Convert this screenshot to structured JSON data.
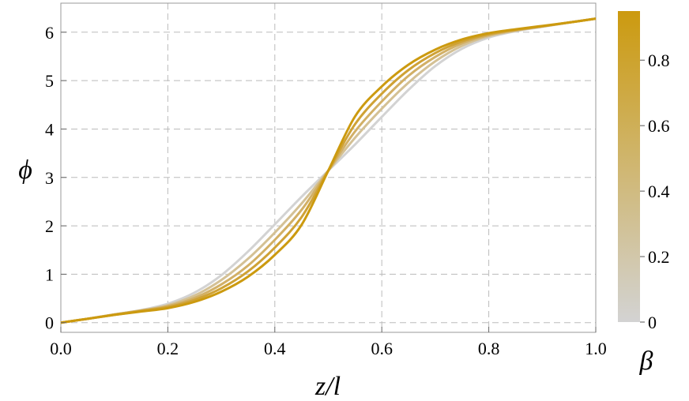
{
  "chart_data": {
    "type": "line",
    "title": "",
    "xlabel": "z/l",
    "ylabel": "ϕ",
    "xlim": [
      0,
      1
    ],
    "ylim": [
      -0.2,
      6.6
    ],
    "xticks": [
      0.0,
      0.2,
      0.4,
      0.6,
      0.8,
      1.0
    ],
    "xtick_labels": [
      "0.0",
      "0.2",
      "0.4",
      "0.6",
      "0.8",
      "1.0"
    ],
    "yticks": [
      0,
      1,
      2,
      3,
      4,
      5,
      6
    ],
    "ytick_labels": [
      "0",
      "1",
      "2",
      "3",
      "4",
      "5",
      "6"
    ],
    "grid": true,
    "x": [
      0,
      0.05,
      0.1,
      0.15,
      0.2,
      0.25,
      0.3,
      0.35,
      0.4,
      0.45,
      0.5,
      0.55,
      0.6,
      0.65,
      0.7,
      0.75,
      0.8,
      0.85,
      0.9,
      0.95,
      1.0
    ],
    "series": [
      {
        "beta": 0.0,
        "color": "#d3d3d3",
        "values": [
          0.0,
          0.08,
          0.17,
          0.26,
          0.39,
          0.62,
          0.98,
          1.47,
          2.03,
          2.6,
          3.14,
          3.68,
          4.25,
          4.81,
          5.3,
          5.66,
          5.89,
          6.02,
          6.11,
          6.2,
          6.28
        ]
      },
      {
        "beta": 0.25,
        "color": "#d4c195",
        "values": [
          0.0,
          0.08,
          0.17,
          0.25,
          0.36,
          0.56,
          0.88,
          1.32,
          1.86,
          2.46,
          3.14,
          3.82,
          4.42,
          4.96,
          5.4,
          5.72,
          5.92,
          6.03,
          6.12,
          6.2,
          6.28
        ]
      },
      {
        "beta": 0.5,
        "color": "#d2b066",
        "values": [
          0.0,
          0.08,
          0.17,
          0.25,
          0.34,
          0.51,
          0.79,
          1.18,
          1.71,
          2.33,
          3.14,
          3.95,
          4.57,
          5.1,
          5.49,
          5.77,
          5.94,
          6.04,
          6.12,
          6.2,
          6.28
        ]
      },
      {
        "beta": 0.75,
        "color": "#cfa235",
        "values": [
          0.0,
          0.08,
          0.16,
          0.24,
          0.32,
          0.47,
          0.71,
          1.06,
          1.55,
          2.18,
          3.14,
          4.1,
          4.73,
          5.22,
          5.57,
          5.81,
          5.96,
          6.05,
          6.12,
          6.2,
          6.28
        ]
      },
      {
        "beta": 0.95,
        "color": "#cc9a0f",
        "values": [
          0.0,
          0.08,
          0.16,
          0.23,
          0.3,
          0.43,
          0.64,
          0.95,
          1.4,
          2.02,
          3.14,
          4.26,
          4.88,
          5.33,
          5.64,
          5.85,
          5.98,
          6.06,
          6.13,
          6.2,
          6.28
        ]
      }
    ],
    "colorbar": {
      "label": "β",
      "range": [
        0,
        0.95
      ],
      "ticks": [
        0,
        0.2,
        0.4,
        0.6,
        0.8
      ],
      "tick_labels": [
        "0",
        "0.2",
        "0.4",
        "0.6",
        "0.8"
      ],
      "color_low": "#d3d3d3",
      "color_high": "#cc9a0f"
    }
  }
}
